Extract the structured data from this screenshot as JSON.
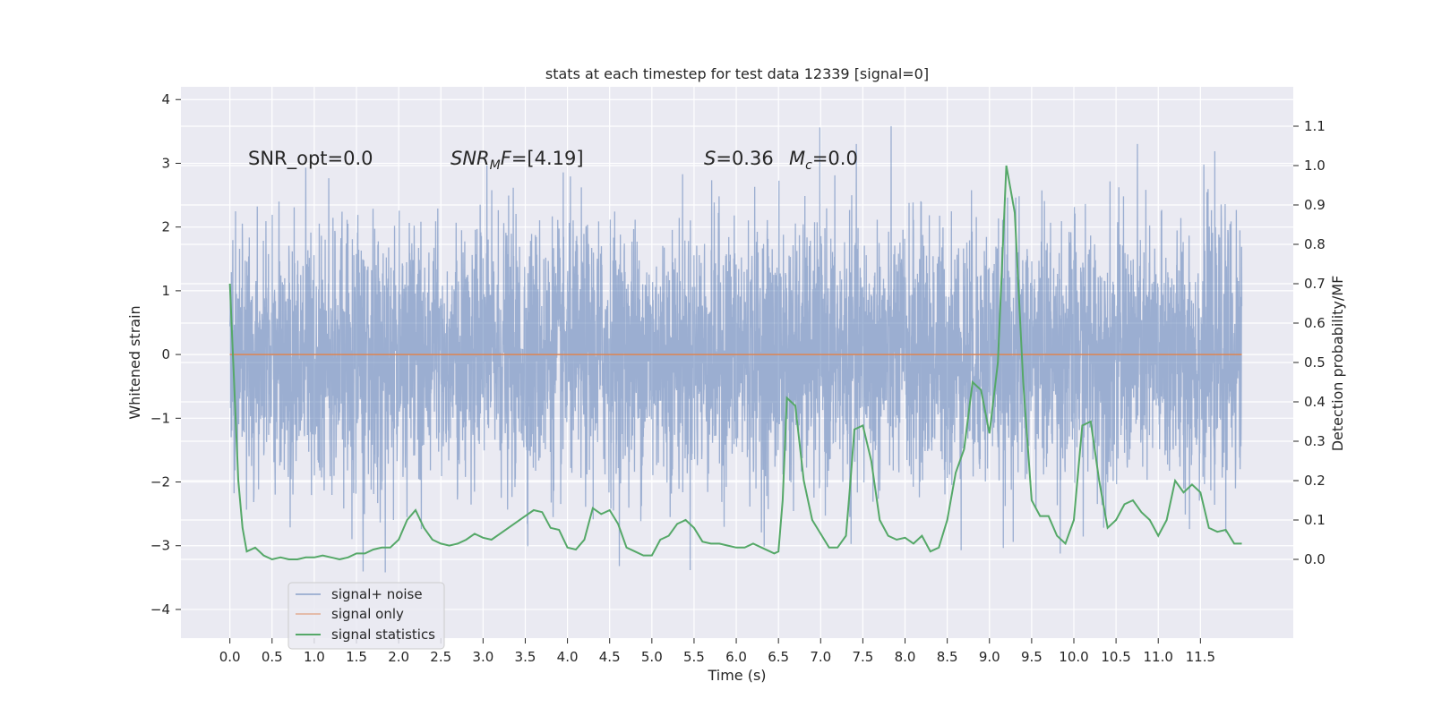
{
  "chart_data": {
    "type": "line",
    "title": "stats at each timestep for test data 12339 [signal=0]",
    "xlabel": "Time (s)",
    "ylabel": "Whitened strain",
    "y2label": "Detection probability/MF",
    "xlim": [
      -0.58,
      12.6
    ],
    "ylim": [
      -4.45,
      4.2
    ],
    "y2lim": [
      -0.2,
      1.2
    ],
    "xticks": [
      0.0,
      0.5,
      1.0,
      1.5,
      2.0,
      2.5,
      3.0,
      3.5,
      4.0,
      4.5,
      5.0,
      5.5,
      6.0,
      6.5,
      7.0,
      7.5,
      8.0,
      8.5,
      9.0,
      9.5,
      10.0,
      10.5,
      11.0,
      11.5
    ],
    "xtick_labels": [
      "0.0",
      "0.5",
      "1.0",
      "1.5",
      "2.0",
      "2.5",
      "3.0",
      "3.5",
      "4.0",
      "4.5",
      "5.0",
      "5.5",
      "6.0",
      "6.5",
      "7.0",
      "7.5",
      "8.0",
      "8.5",
      "9.0",
      "9.5",
      "10.0",
      "10.5",
      "11.0",
      "11.5"
    ],
    "yticks": [
      -4,
      -3,
      -2,
      -1,
      0,
      1,
      2,
      3,
      4
    ],
    "ytick_labels": [
      "−4",
      "−3",
      "−2",
      "−1",
      "0",
      "1",
      "2",
      "3",
      "4"
    ],
    "y2ticks": [
      0.0,
      0.1,
      0.2,
      0.3,
      0.4,
      0.5,
      0.6,
      0.7,
      0.8,
      0.9,
      1.0,
      1.1
    ],
    "y2tick_labels": [
      "0.0",
      "0.1",
      "0.2",
      "0.3",
      "0.4",
      "0.5",
      "0.6",
      "0.7",
      "0.8",
      "0.9",
      "1.0",
      "1.1"
    ],
    "grid": true,
    "legend_position": "bottom-left",
    "annotations": {
      "snr_opt": "SNR_opt=0.0",
      "snr_mf_sym": "SNR",
      "snr_mf_sub": "M",
      "snr_mf_tail": "F",
      "snr_mf_value": "=[4.19]",
      "s_sym": "S",
      "s_value": "=0.36",
      "mc_sym": "M",
      "mc_sub": "c",
      "mc_value": "=0.0"
    },
    "series": [
      {
        "name": "signal+ noise",
        "axis": "left",
        "color": "#4c72b0",
        "description": "whitened strain noise, roughly Gaussian with sigma ~ 1 over t = 0 to 12 s",
        "t_start": 0.0,
        "t_end": 11.99,
        "approx_range": [
          -4.1,
          3.8
        ]
      },
      {
        "name": "signal only",
        "axis": "left",
        "color": "#dd8452",
        "x": [
          0.0,
          11.99
        ],
        "values": [
          0.0,
          0.0
        ]
      },
      {
        "name": "signal statistics",
        "axis": "right",
        "color": "#55a868",
        "x": [
          0.0,
          0.1,
          0.15,
          0.2,
          0.3,
          0.4,
          0.5,
          0.6,
          0.7,
          0.8,
          0.9,
          1.0,
          1.1,
          1.2,
          1.3,
          1.4,
          1.5,
          1.6,
          1.7,
          1.8,
          1.9,
          2.0,
          2.1,
          2.2,
          2.3,
          2.4,
          2.5,
          2.6,
          2.7,
          2.8,
          2.9,
          3.0,
          3.1,
          3.2,
          3.3,
          3.4,
          3.5,
          3.6,
          3.7,
          3.8,
          3.9,
          4.0,
          4.1,
          4.2,
          4.3,
          4.4,
          4.5,
          4.6,
          4.7,
          4.8,
          4.9,
          5.0,
          5.1,
          5.2,
          5.3,
          5.4,
          5.5,
          5.6,
          5.7,
          5.8,
          5.9,
          6.0,
          6.1,
          6.2,
          6.3,
          6.4,
          6.45,
          6.5,
          6.55,
          6.6,
          6.7,
          6.8,
          6.9,
          7.0,
          7.1,
          7.2,
          7.3,
          7.35,
          7.4,
          7.5,
          7.6,
          7.7,
          7.8,
          7.9,
          8.0,
          8.1,
          8.2,
          8.3,
          8.4,
          8.5,
          8.6,
          8.7,
          8.8,
          8.9,
          9.0,
          9.1,
          9.2,
          9.3,
          9.4,
          9.5,
          9.6,
          9.7,
          9.8,
          9.9,
          10.0,
          10.1,
          10.2,
          10.3,
          10.4,
          10.5,
          10.6,
          10.7,
          10.8,
          10.9,
          11.0,
          11.1,
          11.2,
          11.3,
          11.4,
          11.5,
          11.6,
          11.7,
          11.8,
          11.9,
          11.99
        ],
        "values": [
          0.7,
          0.2,
          0.08,
          0.02,
          0.03,
          0.01,
          0.0,
          0.005,
          0.0,
          0.0,
          0.005,
          0.005,
          0.01,
          0.005,
          0.0,
          0.005,
          0.015,
          0.015,
          0.025,
          0.03,
          0.03,
          0.05,
          0.1,
          0.125,
          0.08,
          0.05,
          0.04,
          0.035,
          0.04,
          0.05,
          0.065,
          0.055,
          0.05,
          0.065,
          0.08,
          0.095,
          0.11,
          0.125,
          0.12,
          0.08,
          0.075,
          0.03,
          0.025,
          0.05,
          0.13,
          0.115,
          0.125,
          0.09,
          0.03,
          0.02,
          0.01,
          0.01,
          0.05,
          0.06,
          0.09,
          0.1,
          0.08,
          0.045,
          0.04,
          0.04,
          0.035,
          0.03,
          0.03,
          0.04,
          0.03,
          0.02,
          0.015,
          0.02,
          0.15,
          0.41,
          0.39,
          0.2,
          0.1,
          0.065,
          0.03,
          0.03,
          0.06,
          0.19,
          0.33,
          0.34,
          0.25,
          0.1,
          0.06,
          0.05,
          0.055,
          0.04,
          0.06,
          0.02,
          0.03,
          0.1,
          0.22,
          0.28,
          0.45,
          0.43,
          0.32,
          0.5,
          1.0,
          0.88,
          0.45,
          0.15,
          0.11,
          0.11,
          0.06,
          0.04,
          0.1,
          0.34,
          0.35,
          0.2,
          0.08,
          0.1,
          0.14,
          0.15,
          0.12,
          0.1,
          0.06,
          0.1,
          0.2,
          0.17,
          0.19,
          0.17,
          0.08,
          0.07,
          0.075,
          0.04,
          0.04
        ]
      }
    ]
  }
}
